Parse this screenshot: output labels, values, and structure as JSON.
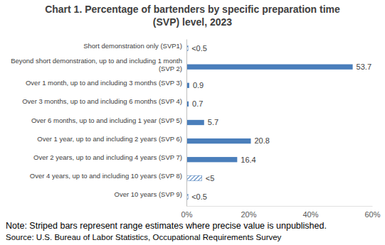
{
  "chart_data": {
    "type": "bar",
    "orientation": "horizontal",
    "title": "Chart 1. Percentage of bartenders by specific preparation time (SVP) level, 2023",
    "categories": [
      "Short demonstration only (SVP1)",
      "Beyond short demonstration, up to and including 1 month (SVP 2)",
      "Over 1 month, up to and including 3 months (SVP 3)",
      "Over 3 months, up to and including 6 months (SVP 4)",
      "Over 6 months, up to and including 1 year (SVP 5)",
      "Over 1 year, up to and including 2 years (SVP 6)",
      "Over 2 years, up to and including 4 years (SVP 7)",
      "Over 4 years, up to and including 10 years (SVP 8)",
      "Over 10 years (SVP 9)"
    ],
    "values": [
      0.5,
      53.7,
      0.9,
      0.7,
      5.7,
      20.8,
      16.4,
      5,
      0.5
    ],
    "value_labels": [
      "<0.5",
      "53.7",
      "0.9",
      "0.7",
      "5.7",
      "20.8",
      "16.4",
      "<5",
      "<0.5"
    ],
    "color": "#4a7ebb",
    "xlim": [
      0,
      60
    ],
    "xticks": [
      {
        "value": 0,
        "label": "0%"
      },
      {
        "value": 20,
        "label": "20%"
      },
      {
        "value": 40,
        "label": "40%"
      },
      {
        "value": 60,
        "label": "60%"
      }
    ],
    "grid": false,
    "data_labels": true,
    "note": "Note: Striped bars represent range estimates where precise value is unpublished.",
    "source": "Source: U.S. Bureau of Labor Statistics, Occupational Requirements Survey"
  }
}
